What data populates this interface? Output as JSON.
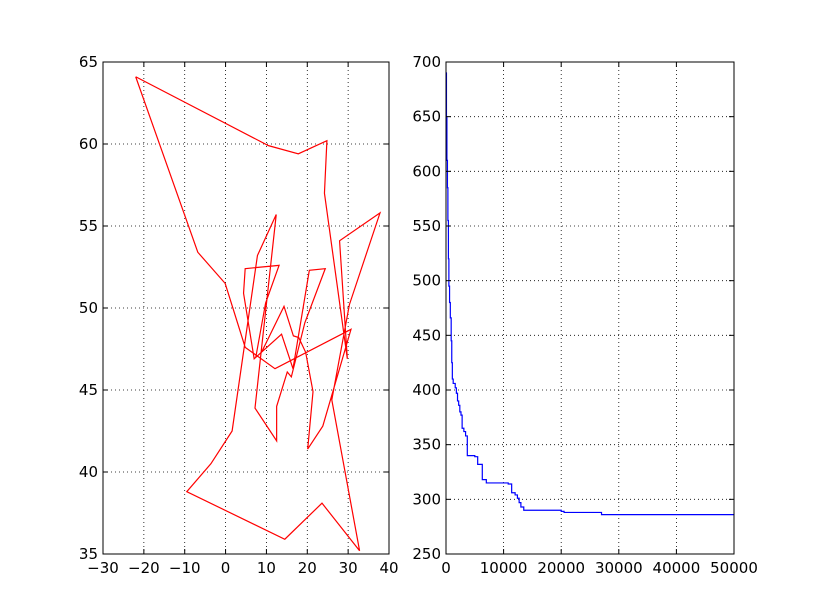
{
  "chart_data": [
    {
      "type": "line",
      "xlim": [
        -30,
        40
      ],
      "ylim": [
        35,
        65
      ],
      "xticks": [
        -30,
        -20,
        -10,
        0,
        10,
        20,
        30,
        40
      ],
      "yticks": [
        35,
        40,
        45,
        50,
        55,
        60,
        65
      ],
      "xtick_labels": [
        "−30",
        "−20",
        "−10",
        "0",
        "10",
        "20",
        "30",
        "40"
      ],
      "ytick_labels": [
        "35",
        "40",
        "45",
        "50",
        "55",
        "60",
        "65"
      ],
      "grid": true,
      "series": [
        {
          "color": "#ff0000",
          "points": [
            [
              -22,
              64.1
            ],
            [
              10.5,
              59.9
            ],
            [
              17.8,
              59.4
            ],
            [
              24.8,
              60.2
            ],
            [
              24.2,
              57.0
            ],
            [
              29.8,
              46.9
            ],
            [
              27.9,
              54.1
            ],
            [
              37.8,
              55.8
            ],
            [
              30.3,
              50.2
            ],
            [
              26.0,
              44.4
            ],
            [
              32.8,
              35.2
            ],
            [
              23.6,
              38.1
            ],
            [
              14.5,
              35.9
            ],
            [
              -9.5,
              38.8
            ],
            [
              -3.6,
              40.5
            ],
            [
              1.6,
              42.5
            ],
            [
              7.8,
              53.2
            ],
            [
              12.4,
              55.7
            ],
            [
              7.2,
              43.9
            ],
            [
              12.5,
              41.9
            ],
            [
              12.5,
              44.0
            ],
            [
              15.1,
              46.1
            ],
            [
              16.1,
              45.8
            ],
            [
              19.4,
              49.1
            ],
            [
              24.4,
              52.4
            ],
            [
              20.5,
              52.3
            ],
            [
              16.5,
              46.3
            ],
            [
              13.7,
              48.4
            ],
            [
              7.0,
              46.9
            ],
            [
              4.4,
              50.9
            ],
            [
              4.8,
              52.4
            ],
            [
              13.1,
              52.6
            ],
            [
              9.8,
              50.3
            ],
            [
              7.4,
              47.0
            ],
            [
              8.8,
              47.3
            ],
            [
              14.3,
              50.1
            ],
            [
              16.6,
              48.3
            ],
            [
              17.9,
              48.2
            ],
            [
              19.6,
              47.3
            ],
            [
              21.4,
              44.9
            ],
            [
              20.1,
              41.4
            ],
            [
              23.8,
              42.8
            ],
            [
              30.7,
              48.7
            ],
            [
              12.1,
              46.3
            ],
            [
              4.8,
              47.6
            ],
            [
              -0.1,
              51.5
            ],
            [
              -6.8,
              53.4
            ],
            [
              -22,
              64.1
            ]
          ]
        }
      ]
    },
    {
      "type": "line",
      "xlim": [
        0,
        50000
      ],
      "ylim": [
        250,
        700
      ],
      "xticks": [
        0,
        10000,
        20000,
        30000,
        40000,
        50000
      ],
      "yticks": [
        250,
        300,
        350,
        400,
        450,
        500,
        550,
        600,
        650,
        700
      ],
      "xtick_labels": [
        "0",
        "10000",
        "20000",
        "30000",
        "40000",
        "50000"
      ],
      "ytick_labels": [
        "250",
        "300",
        "350",
        "400",
        "450",
        "500",
        "550",
        "600",
        "650",
        "700"
      ],
      "grid": true,
      "series": [
        {
          "color": "#0000ff",
          "step": true,
          "points": [
            [
              0,
              690
            ],
            [
              80,
              650
            ],
            [
              160,
              610
            ],
            [
              250,
              585
            ],
            [
              330,
              555
            ],
            [
              420,
              520
            ],
            [
              500,
              495
            ],
            [
              620,
              480
            ],
            [
              750,
              466
            ],
            [
              900,
              445
            ],
            [
              1000,
              425
            ],
            [
              1100,
              410
            ],
            [
              1250,
              406
            ],
            [
              1600,
              402
            ],
            [
              1800,
              397
            ],
            [
              2000,
              390
            ],
            [
              2200,
              386
            ],
            [
              2400,
              380
            ],
            [
              2600,
              377
            ],
            [
              2800,
              365
            ],
            [
              3100,
              362
            ],
            [
              3400,
              358
            ],
            [
              3700,
              340
            ],
            [
              5000,
              339
            ],
            [
              5500,
              332
            ],
            [
              6300,
              318
            ],
            [
              6500,
              318
            ],
            [
              7000,
              315
            ],
            [
              10800,
              314
            ],
            [
              11400,
              306
            ],
            [
              12000,
              304
            ],
            [
              12400,
              301
            ],
            [
              12700,
              297
            ],
            [
              13000,
              293
            ],
            [
              13500,
              290
            ],
            [
              20000,
              289
            ],
            [
              20500,
              288
            ],
            [
              27000,
              286
            ],
            [
              50000,
              286
            ]
          ]
        }
      ]
    }
  ]
}
